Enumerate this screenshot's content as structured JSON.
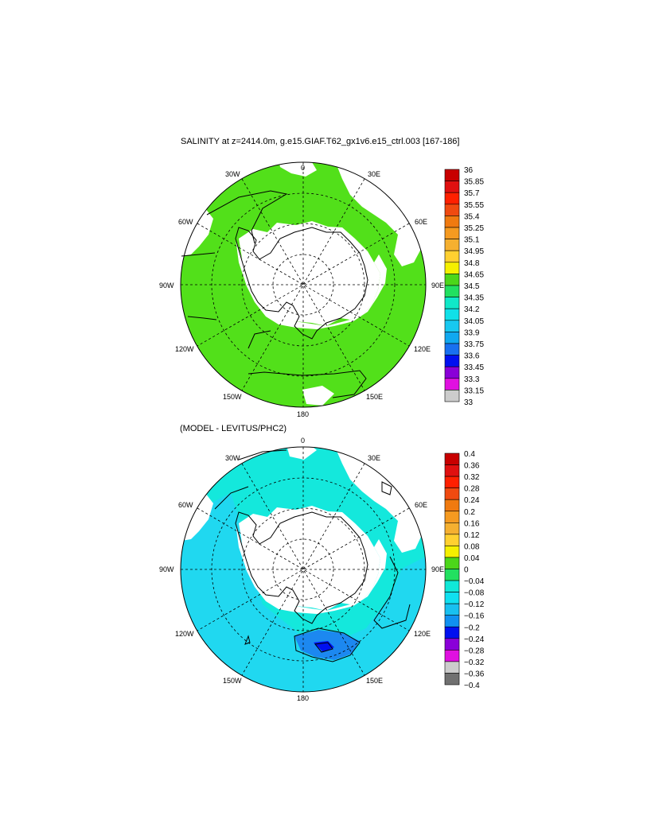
{
  "panels": [
    {
      "title": "SALINITY at z=2414.0m, g.e15.GIAF.T62_gx1v6.e15_ctrl.003 [167-186]",
      "longitude_labels": [
        "0",
        "30E",
        "60E",
        "90E",
        "120E",
        "150E",
        "180",
        "150W",
        "120W",
        "90W",
        "60W",
        "30W"
      ],
      "colorbar": {
        "labels": [
          "36",
          "35.85",
          "35.7",
          "35.55",
          "35.4",
          "35.25",
          "35.1",
          "34.95",
          "34.8",
          "34.65",
          "34.5",
          "34.35",
          "34.2",
          "34.05",
          "33.9",
          "33.75",
          "33.6",
          "33.45",
          "33.3",
          "33.15",
          "33"
        ],
        "colors": [
          "#c80000",
          "#e01010",
          "#ff2000",
          "#f04a10",
          "#f07a10",
          "#f59a20",
          "#f5b030",
          "#ffd030",
          "#f5f000",
          "#4cd61a",
          "#22e060",
          "#10e8c8",
          "#10e0e8",
          "#18c8f0",
          "#10a8f0",
          "#1870f0",
          "#0010f0",
          "#8a00d8",
          "#e010e0",
          "#cccccc"
        ]
      },
      "field_fill": "#52e01a"
    },
    {
      "title": "(MODEL - LEVITUS/PHC2)",
      "longitude_labels": [
        "0",
        "30E",
        "60E",
        "90E",
        "120E",
        "150E",
        "180",
        "150W",
        "120W",
        "90W",
        "60W",
        "30W"
      ],
      "colorbar": {
        "labels": [
          "0.4",
          "0.36",
          "0.32",
          "0.28",
          "0.24",
          "0.2",
          "0.16",
          "0.12",
          "0.08",
          "0.04",
          "0",
          "−0.04",
          "−0.08",
          "−0.12",
          "−0.16",
          "−0.2",
          "−0.24",
          "−0.28",
          "−0.32",
          "−0.36",
          "−0.4"
        ],
        "colors": [
          "#c80000",
          "#e01010",
          "#ff2000",
          "#f04a10",
          "#f07a10",
          "#f59a20",
          "#f5b030",
          "#ffd030",
          "#f5f000",
          "#4cd61a",
          "#22e060",
          "#10e8d8",
          "#10e0f0",
          "#18c0f0",
          "#1090f0",
          "#0010f0",
          "#8a00d8",
          "#e010e0",
          "#cccccc",
          "#707070"
        ]
      },
      "field_fill": "#14e8dc"
    }
  ]
}
